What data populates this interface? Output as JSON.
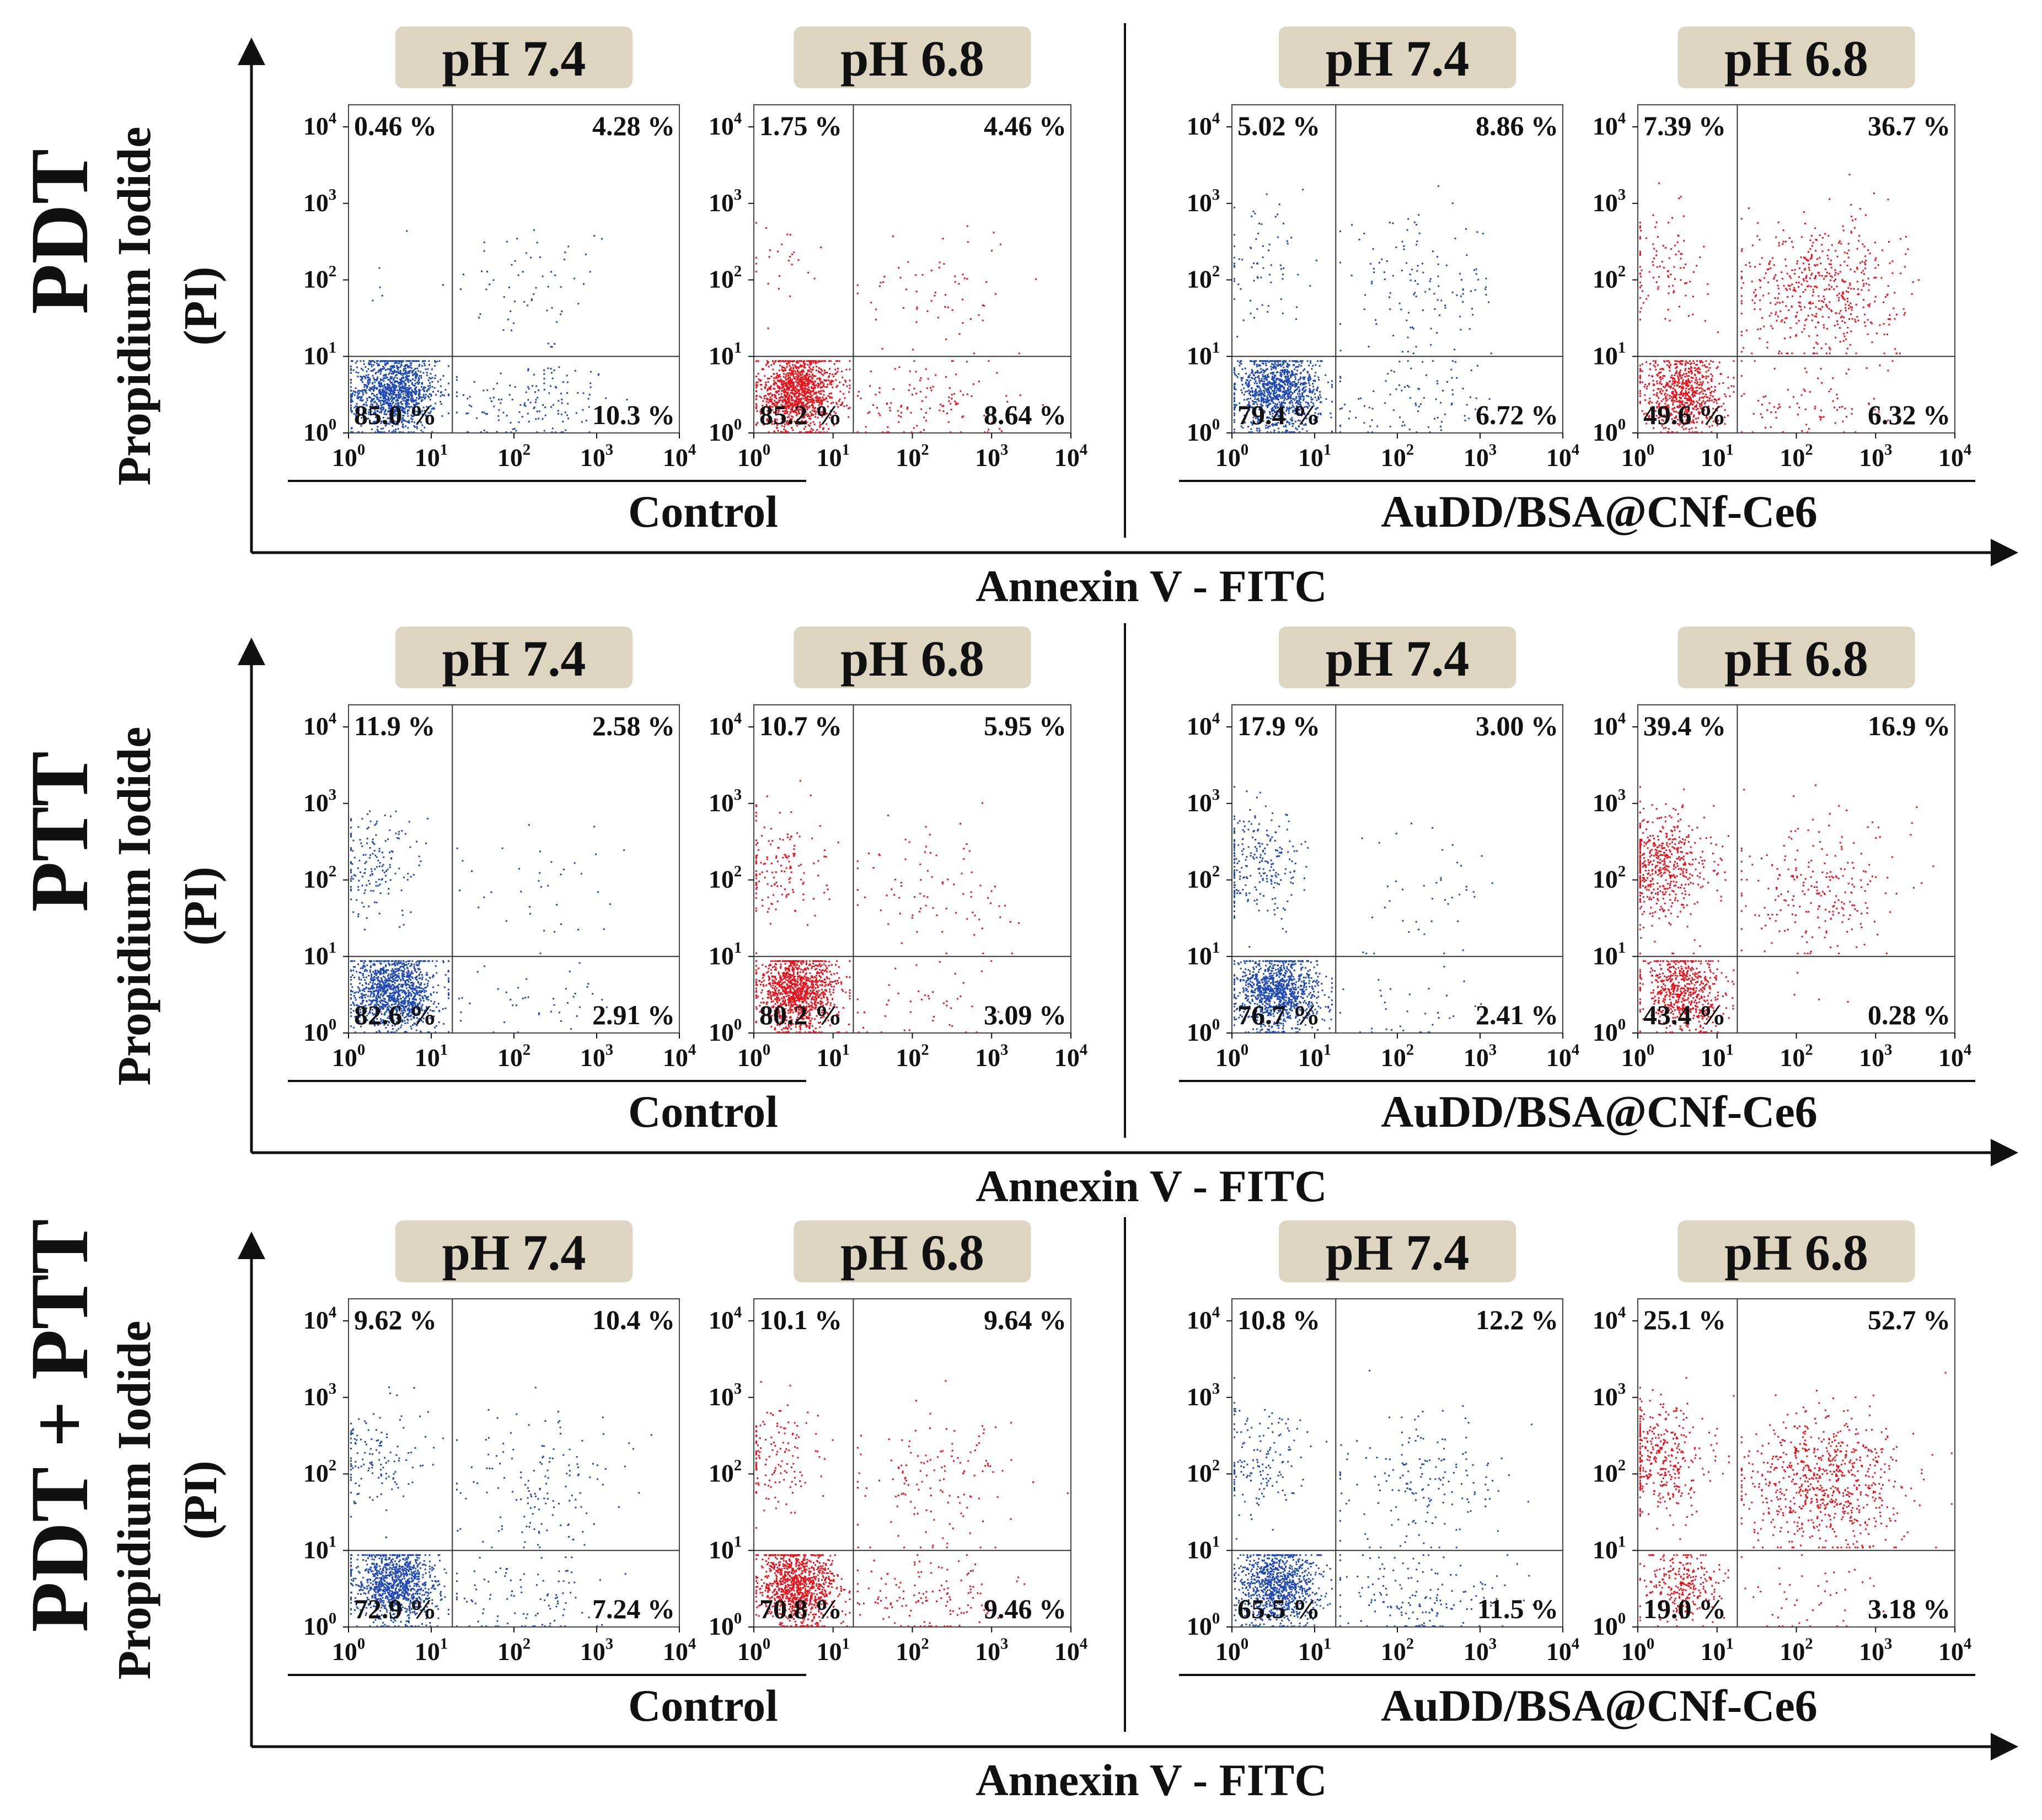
{
  "axis_labels": {
    "x": "Annexin V - FITC",
    "y": "Propidium Iodide (PI)",
    "y_line1": "Propidium Iodide",
    "y_line2": "(PI)"
  },
  "groups": [
    "Control",
    "AuDD/BSA@CNf-Ce6"
  ],
  "colors": {
    "ph74": "#1f49b6",
    "ph68": "#e8121c",
    "header_bg": "#ddd5bf",
    "axis": "#111111"
  },
  "rows": [
    {
      "label": "PDT",
      "panels": [
        {
          "group": "Control",
          "ph": "pH 7.4",
          "q": [
            "0.46 %",
            "4.28 %",
            "10.3 %",
            "85.0 %"
          ]
        },
        {
          "group": "Control",
          "ph": "pH 6.8",
          "q": [
            "1.75 %",
            "4.46 %",
            "8.64 %",
            "85.2 %"
          ]
        },
        {
          "group": "AuDD/BSA@CNf-Ce6",
          "ph": "pH 7.4",
          "q": [
            "5.02 %",
            "8.86 %",
            "6.72 %",
            "79.4 %"
          ]
        },
        {
          "group": "AuDD/BSA@CNf-Ce6",
          "ph": "pH 6.8",
          "q": [
            "7.39 %",
            "36.7 %",
            "6.32 %",
            "49.6 %"
          ]
        }
      ]
    },
    {
      "label": "PTT",
      "panels": [
        {
          "group": "Control",
          "ph": "pH 7.4",
          "q": [
            "11.9 %",
            "2.58 %",
            "2.91 %",
            "82.6 %"
          ]
        },
        {
          "group": "Control",
          "ph": "pH 6.8",
          "q": [
            "10.7 %",
            "5.95 %",
            "3.09 %",
            "80.2 %"
          ]
        },
        {
          "group": "AuDD/BSA@CNf-Ce6",
          "ph": "pH 7.4",
          "q": [
            "17.9 %",
            "3.00 %",
            "2.41 %",
            "76.7 %"
          ]
        },
        {
          "group": "AuDD/BSA@CNf-Ce6",
          "ph": "pH 6.8",
          "q": [
            "39.4 %",
            "16.9 %",
            "0.28 %",
            "43.4 %"
          ]
        }
      ]
    },
    {
      "label": "PDT + PTT",
      "panels": [
        {
          "group": "Control",
          "ph": "pH 7.4",
          "q": [
            "9.62 %",
            "10.4 %",
            "7.24 %",
            "72.9 %"
          ]
        },
        {
          "group": "Control",
          "ph": "pH 6.8",
          "q": [
            "10.1 %",
            "9.64 %",
            "9.46 %",
            "70.8 %"
          ]
        },
        {
          "group": "AuDD/BSA@CNf-Ce6",
          "ph": "pH 7.4",
          "q": [
            "10.8 %",
            "12.2 %",
            "11.5 %",
            "65.5 %"
          ]
        },
        {
          "group": "AuDD/BSA@CNf-Ce6",
          "ph": "pH 6.8",
          "q": [
            "25.1 %",
            "52.7 %",
            "3.18 %",
            "19.0 %"
          ]
        }
      ]
    }
  ],
  "chart_data": {
    "type": "scatter",
    "xlabel": "Annexin V - FITC",
    "ylabel": "Propidium Iodide (PI)",
    "xscale": "log",
    "yscale": "log",
    "xlim": [
      1,
      10000
    ],
    "ylim": [
      1,
      10000
    ],
    "x_ticks": [
      "10^0",
      "10^1",
      "10^2",
      "10^3",
      "10^4"
    ],
    "y_ticks": [
      "10^0",
      "10^1",
      "10^2",
      "10^3",
      "10^4"
    ],
    "gate": {
      "x": 18,
      "y": 10
    },
    "quadrant_order": [
      "upper-left",
      "upper-right",
      "lower-right",
      "lower-left"
    ],
    "panels_note": "Quadrant percentages per panel are given in rows[].panels[].q"
  }
}
